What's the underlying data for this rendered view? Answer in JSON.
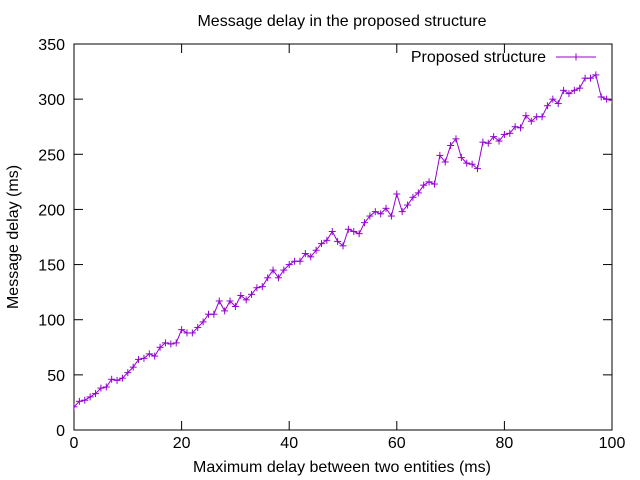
{
  "chart_data": {
    "type": "line",
    "title": "Message delay in the proposed structure",
    "xlabel": "Maximum delay between two entities (ms)",
    "ylabel": "Message delay (ms)",
    "xlim": [
      0,
      100
    ],
    "ylim": [
      0,
      350
    ],
    "xticks": [
      0,
      20,
      40,
      60,
      80,
      100
    ],
    "yticks": [
      0,
      50,
      100,
      150,
      200,
      250,
      300,
      350
    ],
    "grid": false,
    "legend_position": "top-right",
    "series": [
      {
        "name": "Proposed structure",
        "color": "#9400d3",
        "marker": "plus",
        "x": [
          0,
          1,
          2,
          3,
          4,
          5,
          6,
          7,
          8,
          9,
          10,
          11,
          12,
          13,
          14,
          15,
          16,
          17,
          18,
          19,
          20,
          21,
          22,
          23,
          24,
          25,
          26,
          27,
          28,
          29,
          30,
          31,
          32,
          33,
          34,
          35,
          36,
          37,
          38,
          39,
          40,
          41,
          42,
          43,
          44,
          45,
          46,
          47,
          48,
          49,
          50,
          51,
          52,
          53,
          54,
          55,
          56,
          57,
          58,
          59,
          60,
          61,
          62,
          63,
          64,
          65,
          66,
          67,
          68,
          69,
          70,
          71,
          72,
          73,
          74,
          75,
          76,
          77,
          78,
          79,
          80,
          81,
          82,
          83,
          84,
          85,
          86,
          87,
          88,
          89,
          90,
          91,
          92,
          93,
          94,
          95,
          96,
          97,
          98,
          99,
          100
        ],
        "y": [
          21,
          26,
          27,
          30,
          33,
          38,
          39,
          46,
          45,
          47,
          52,
          57,
          64,
          65,
          69,
          67,
          75,
          79,
          78,
          79,
          91,
          88,
          88,
          93,
          98,
          105,
          105,
          117,
          108,
          117,
          112,
          122,
          118,
          123,
          129,
          130,
          138,
          145,
          138,
          145,
          150,
          153,
          153,
          160,
          157,
          163,
          169,
          172,
          180,
          171,
          167,
          182,
          180,
          178,
          188,
          194,
          198,
          196,
          201,
          194,
          214,
          198,
          204,
          211,
          215,
          222,
          225,
          223,
          249,
          243,
          258,
          264,
          247,
          242,
          241,
          237,
          261,
          260,
          266,
          262,
          268,
          269,
          275,
          274,
          285,
          280,
          284,
          284,
          294,
          300,
          296,
          308,
          305,
          308,
          310,
          319,
          319,
          322,
          302,
          300,
          299
        ]
      }
    ]
  }
}
